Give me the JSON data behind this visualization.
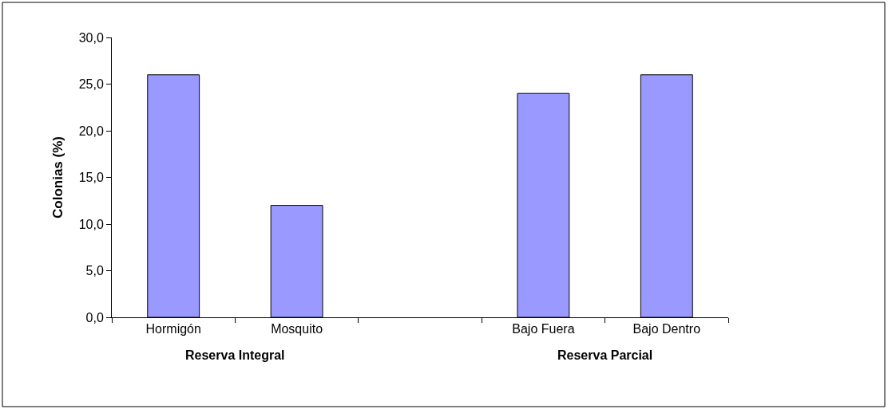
{
  "chart_data": {
    "type": "bar",
    "categories": [
      "Hormigón",
      "Mosquito",
      null,
      "Bajo Fuera",
      "Bajo Dentro"
    ],
    "values": [
      26.0,
      12.0,
      null,
      24.0,
      26.0
    ],
    "color": "#9999ff",
    "ylabel": "Colonias (%)",
    "annotations": [
      "Reserva Integral",
      "Reserva Parcial"
    ],
    "ylim": [
      0,
      30
    ],
    "yticks": [
      {
        "value": 0,
        "label": "0,0"
      },
      {
        "value": 5,
        "label": "5,0"
      },
      {
        "value": 10,
        "label": "10,0"
      },
      {
        "value": 15,
        "label": "15,0"
      },
      {
        "value": 20,
        "label": "20,0"
      },
      {
        "value": 25,
        "label": "25,0"
      },
      {
        "value": 30,
        "label": "30,0"
      }
    ],
    "legend": false
  }
}
